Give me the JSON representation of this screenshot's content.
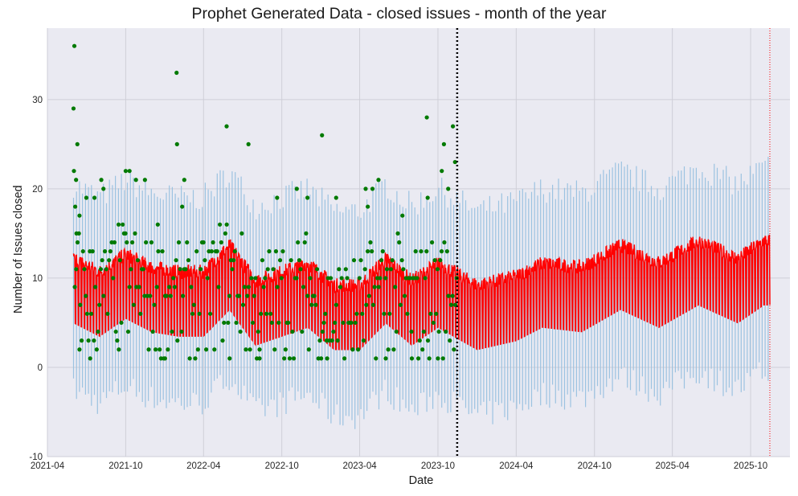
{
  "chart_data": {
    "type": "line",
    "title": "Prophet Generated Data - closed issues - month of the year",
    "xlabel": "Date",
    "ylabel": "Number of Issues closed",
    "x_range": [
      "2021-04-01",
      "2026-01-01"
    ],
    "ylim": [
      -10,
      38
    ],
    "x_ticks": [
      "2021-04",
      "2021-10",
      "2022-04",
      "2022-10",
      "2023-04",
      "2023-10",
      "2024-04",
      "2024-10",
      "2025-04",
      "2025-10"
    ],
    "y_ticks": [
      -10,
      0,
      10,
      20,
      30
    ],
    "grid": true,
    "history_start": "2021-06-01",
    "history_end": "2023-11-15",
    "forecast_end": "2025-11-15",
    "changepoint_marker": "2023-11-15",
    "forecast_end_marker": "2025-11-15",
    "series": [
      {
        "role": "observed",
        "marker": "dot",
        "approx_points": [
          [
            "2021-06-03",
            36
          ],
          [
            "2021-06-01",
            29
          ],
          [
            "2021-06-10",
            25
          ],
          [
            "2021-06-02",
            22
          ],
          [
            "2021-06-07",
            21
          ],
          [
            "2021-06-05",
            18
          ],
          [
            "2021-06-08",
            15
          ],
          [
            "2021-06-15",
            17
          ],
          [
            "2021-07-01",
            19
          ],
          [
            "2021-07-20",
            19
          ],
          [
            "2021-08-05",
            21
          ],
          [
            "2021-08-10",
            20
          ],
          [
            "2021-10-01",
            22
          ],
          [
            "2021-10-10",
            22
          ],
          [
            "2021-10-25",
            21
          ],
          [
            "2021-11-15",
            21
          ],
          [
            "2021-12-15",
            16
          ],
          [
            "2022-01-28",
            33
          ],
          [
            "2022-01-29",
            25
          ],
          [
            "2022-02-15",
            21
          ],
          [
            "2022-02-10",
            18
          ],
          [
            "2022-05-25",
            27
          ],
          [
            "2022-07-15",
            25
          ],
          [
            "2022-09-20",
            19
          ],
          [
            "2022-11-05",
            20
          ],
          [
            "2022-11-30",
            19
          ],
          [
            "2023-01-03",
            26
          ],
          [
            "2023-02-05",
            19
          ],
          [
            "2023-04-15",
            20
          ],
          [
            "2023-04-20",
            18
          ],
          [
            "2023-05-01",
            20
          ],
          [
            "2023-05-15",
            21
          ],
          [
            "2023-07-10",
            17
          ],
          [
            "2023-09-05",
            28
          ],
          [
            "2023-09-07",
            19
          ],
          [
            "2023-10-10",
            22
          ],
          [
            "2023-10-15",
            25
          ],
          [
            "2023-10-25",
            20
          ],
          [
            "2023-11-05",
            27
          ],
          [
            "2023-11-10",
            23
          ],
          [
            "2021-06-15",
            2
          ],
          [
            "2021-07-10",
            1
          ],
          [
            "2021-09-15",
            2
          ],
          [
            "2022-01-01",
            1
          ],
          [
            "2022-06-01",
            1
          ],
          [
            "2022-08-10",
            1
          ],
          [
            "2023-01-15",
            1
          ],
          [
            "2023-06-01",
            1
          ],
          [
            "2023-08-01",
            1
          ],
          [
            "2023-10-01",
            1
          ]
        ]
      },
      {
        "role": "trend_forecast",
        "level_points": [
          [
            "2021-06",
            9
          ],
          [
            "2021-08",
            7.5
          ],
          [
            "2021-10",
            9.5
          ],
          [
            "2021-12",
            8
          ],
          [
            "2022-02",
            7.5
          ],
          [
            "2022-04",
            7.5
          ],
          [
            "2022-06",
            10.5
          ],
          [
            "2022-08",
            6.5
          ],
          [
            "2022-10",
            7.5
          ],
          [
            "2022-12",
            8.5
          ],
          [
            "2023-02",
            6
          ],
          [
            "2023-04",
            6
          ],
          [
            "2023-06",
            9
          ],
          [
            "2023-08",
            6.5
          ],
          [
            "2023-10",
            8.5
          ],
          [
            "2024-01",
            6
          ],
          [
            "2024-04",
            7
          ],
          [
            "2024-06",
            8.5
          ],
          [
            "2024-09",
            8
          ],
          [
            "2024-12",
            10.5
          ],
          [
            "2025-03",
            8.5
          ],
          [
            "2025-06",
            11
          ],
          [
            "2025-09",
            9
          ],
          [
            "2025-11",
            11
          ]
        ],
        "weekly_amplitude": 4
      },
      {
        "role": "uncertainty_interval",
        "half_width": 7.5
      }
    ],
    "colors": {
      "observed": "#007a00",
      "forecast": "#ff0000",
      "uncertainty": "#94bfdf",
      "changepoint_line": "#000000",
      "forecast_end_line": "#ff0000",
      "background": "#eaeaf2",
      "grid": "#cfcfd8"
    }
  }
}
